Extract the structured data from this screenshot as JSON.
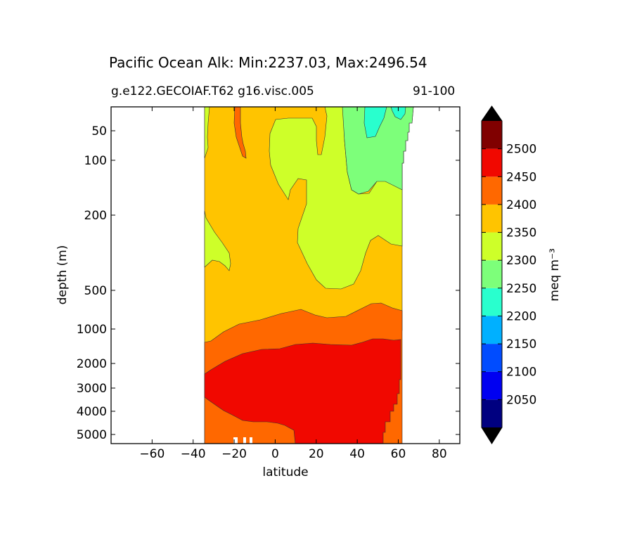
{
  "chart_data": {
    "type": "contourf",
    "title": "Pacific Ocean Alk: Min:2237.03, Max:2496.54",
    "subtitle_left": "g.e122.GECOIAF.T62 g16.visc.005",
    "subtitle_right": "91-100",
    "xlabel": "latitude",
    "ylabel": "depth (m)",
    "xlim": [
      -80,
      90
    ],
    "x_ticks": [
      -60,
      -40,
      -20,
      0,
      20,
      40,
      60,
      80
    ],
    "x_tick_labels": [
      "−60",
      "−40",
      "−20",
      "0",
      "20",
      "40",
      "60",
      "80"
    ],
    "y_scale": "log (depth)",
    "ylim": [
      5500,
      5
    ],
    "y_ticks": [
      50,
      100,
      200,
      500,
      1000,
      2000,
      3000,
      4000,
      5000
    ],
    "y_tick_labels": [
      "50",
      "100",
      "200",
      "500",
      "1000",
      "2000",
      "3000",
      "4000",
      "5000"
    ],
    "colorbar": {
      "label": "meq m⁻³",
      "levels": [
        2000,
        2050,
        2100,
        2150,
        2200,
        2250,
        2300,
        2350,
        2400,
        2450,
        2500,
        2550
      ],
      "tick_values": [
        2050,
        2100,
        2150,
        2200,
        2250,
        2300,
        2350,
        2400,
        2450,
        2500
      ],
      "tick_labels": [
        "2050",
        "2100",
        "2150",
        "2200",
        "2250",
        "2300",
        "2350",
        "2400",
        "2450",
        "2500"
      ],
      "colors": [
        "#000080",
        "#0000f1",
        "#004cff",
        "#00b0ff",
        "#29ffce",
        "#7dff7a",
        "#ceff29",
        "#ffc400",
        "#ff6800",
        "#f10800",
        "#800000"
      ],
      "extend": "both",
      "under_color": "#000080",
      "over_color": "#800000"
    },
    "regions": [
      {
        "level": "2350-2400",
        "color": "#ffc400"
      },
      {
        "level": "2300-2350",
        "color": "#ceff29"
      },
      {
        "level": "2250-2300",
        "color": "#7dff7a"
      },
      {
        "level": "2200-2250",
        "color": "#29ffce"
      },
      {
        "level": "2400-2450",
        "color": "#ff6800"
      },
      {
        "level": "2450-2500",
        "color": "#f10800"
      }
    ]
  }
}
